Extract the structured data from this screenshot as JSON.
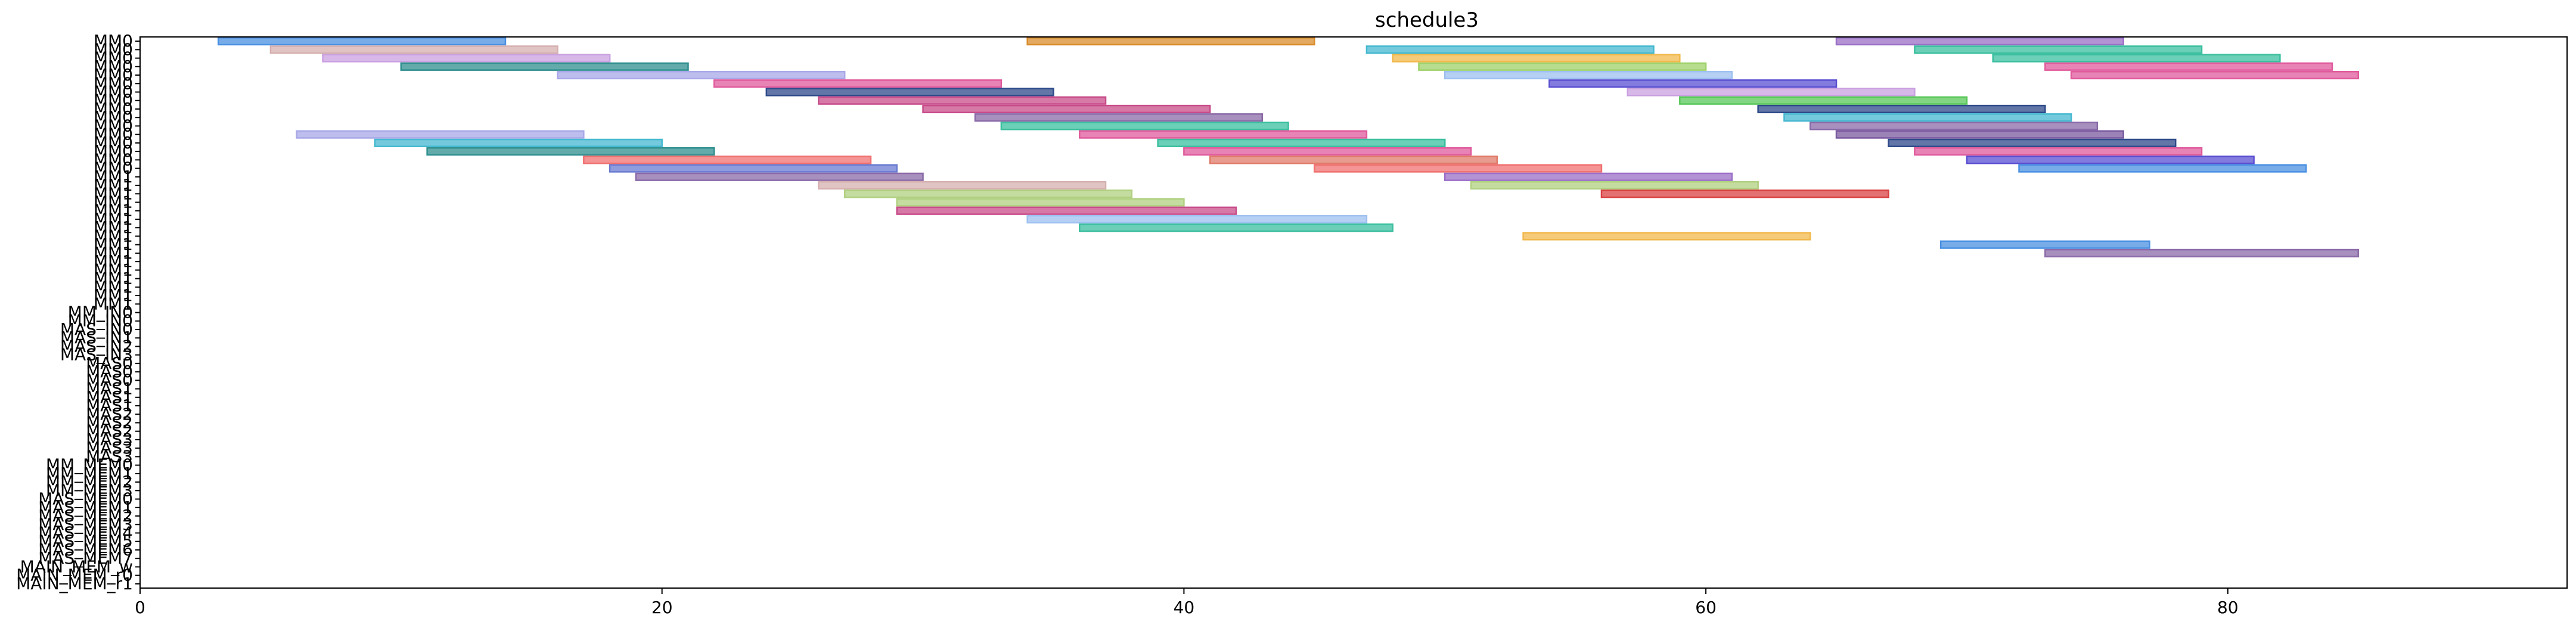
{
  "chart_data": {
    "type": "gantt",
    "title": "schedule3",
    "xlim": [
      0,
      93
    ],
    "x_ticks": [
      0,
      20,
      40,
      60,
      80
    ],
    "grid": false,
    "rows": [
      "MM0",
      "MM0",
      "MM0",
      "MM0",
      "MM0",
      "MM0",
      "MM0",
      "MM0",
      "MM0",
      "MM0",
      "MM0",
      "MM0",
      "MM0",
      "MM0",
      "MM0",
      "MM0",
      "MM1",
      "MM1",
      "MM1",
      "MM1",
      "MM1",
      "MM1",
      "MM1",
      "MM1",
      "MM1",
      "MM1",
      "MM1",
      "MM1",
      "MM1",
      "MM1",
      "MM1",
      "MM1",
      "MM_IN0",
      "MM_IN0",
      "MAS_IN0",
      "MAS_IN1",
      "MAS_IN2",
      "MAS_IN3",
      "MAS0",
      "MAS0",
      "MAS0",
      "MAS1",
      "MAS1",
      "MAS1",
      "MAS2",
      "MAS2",
      "MAS2",
      "MAS3",
      "MAS3",
      "MAS3",
      "MM_MEM0",
      "MM_MEM1",
      "MM_MEM2",
      "MM_MEM3",
      "MAS_MEM0",
      "MAS_MEM1",
      "MAS_MEM2",
      "MAS_MEM3",
      "MAS_MEM4",
      "MAS_MEM5",
      "MAS_MEM6",
      "MAS_MEM7",
      "MAIN_MEM_w",
      "MAIN_MEM_r0",
      "MAIN_MEM_r1"
    ],
    "y_tick_labels": [
      "MM0",
      "MM0",
      "MM0",
      "MM0",
      "MM0",
      "MM0",
      "MM0",
      "MM0",
      "MM0",
      "MM0",
      "MM0",
      "MM0",
      "MM0",
      "MM0",
      "MM0",
      "MM0",
      "MM1",
      "MM1",
      "MM1",
      "MM1",
      "MM1",
      "MM1",
      "MM1",
      "MM1",
      "MM1",
      "MM1",
      "MM1",
      "MM1",
      "MM1",
      "MM1",
      "MM1",
      "MM1",
      "MM_IN0",
      "MM_IN0",
      "MAS_IN0",
      "MAS_IN1",
      "MAS_IN2",
      "MAS_IN3",
      "MAS0",
      "MAS0",
      "MAS0",
      "MAS1",
      "MAS1",
      "MAS1",
      "MAS2",
      "MAS2",
      "MAS2",
      "MAS3",
      "MAS3",
      "MAS3",
      "MM_MEM0",
      "MM_MEM1",
      "MM_MEM2",
      "MM_MEM3",
      "MAS_MEM0",
      "MAS_MEM1",
      "MAS_MEM2",
      "MAS_MEM3",
      "MAS_MEM4",
      "MAS_MEM5",
      "MAS_MEM6",
      "MAS_MEM7",
      "MAIN_MEM_w",
      "MAIN_MEM_r0",
      "MAIN_MEM_r1"
    ],
    "palette": [
      "#4a90e2",
      "#d98c2b",
      "#9b6fc7",
      "#3bbf9f",
      "#e05a9c",
      "#7a5aa0",
      "#9fd26a",
      "#f2b84b",
      "#45b8d0",
      "#5a4fd1",
      "#c9a0e0",
      "#c84c8a",
      "#2f8f8f",
      "#8a6aa8",
      "#d94141",
      "#58c858",
      "#e07b6a",
      "#6a7bd1",
      "#a8a8e8",
      "#b0d080",
      "#f07070",
      "#9ec0f0",
      "#c8b080",
      "#2e4a8a",
      "#7fe07f",
      "#d6b0b0"
    ],
    "bars": [
      [
        0,
        3,
        14,
        0
      ],
      [
        0,
        34,
        45,
        1
      ],
      [
        0,
        65,
        76,
        2
      ],
      [
        1,
        5,
        16,
        25
      ],
      [
        1,
        47,
        58,
        8
      ],
      [
        1,
        68,
        79,
        3
      ],
      [
        2,
        7,
        18,
        10
      ],
      [
        2,
        48,
        59,
        7
      ],
      [
        2,
        71,
        82,
        3
      ],
      [
        3,
        10,
        21,
        12
      ],
      [
        3,
        49,
        60,
        6
      ],
      [
        3,
        73,
        84,
        4
      ],
      [
        4,
        16,
        27,
        18
      ],
      [
        4,
        50,
        61,
        21
      ],
      [
        4,
        74,
        85,
        4
      ],
      [
        5,
        22,
        33,
        4
      ],
      [
        5,
        54,
        65,
        9
      ],
      [
        6,
        24,
        35,
        23
      ],
      [
        6,
        57,
        68,
        10
      ],
      [
        7,
        26,
        37,
        11
      ],
      [
        7,
        59,
        70,
        15
      ],
      [
        8,
        30,
        41,
        11
      ],
      [
        8,
        62,
        73,
        23
      ],
      [
        9,
        32,
        43,
        13
      ],
      [
        9,
        63,
        74,
        8
      ],
      [
        10,
        33,
        44,
        3
      ],
      [
        10,
        64,
        75,
        13
      ],
      [
        11,
        6,
        17,
        18
      ],
      [
        11,
        36,
        47,
        4
      ],
      [
        11,
        65,
        76,
        5
      ],
      [
        12,
        9,
        20,
        8
      ],
      [
        12,
        39,
        50,
        3
      ],
      [
        12,
        67,
        78,
        23
      ],
      [
        13,
        11,
        22,
        12
      ],
      [
        13,
        40,
        51,
        4
      ],
      [
        13,
        68,
        79,
        4
      ],
      [
        14,
        17,
        28,
        20
      ],
      [
        14,
        41,
        52,
        16
      ],
      [
        14,
        70,
        81,
        9
      ],
      [
        15,
        18,
        29,
        17
      ],
      [
        15,
        45,
        56,
        20
      ],
      [
        15,
        72,
        83,
        0
      ],
      [
        16,
        19,
        30,
        13
      ],
      [
        16,
        50,
        61,
        2
      ],
      [
        17,
        26,
        37,
        25
      ],
      [
        17,
        51,
        62,
        19
      ],
      [
        18,
        27,
        38,
        19
      ],
      [
        18,
        56,
        67,
        14
      ],
      [
        19,
        29,
        40,
        19
      ],
      [
        20,
        29,
        42,
        11
      ],
      [
        21,
        34,
        47,
        21
      ],
      [
        22,
        36,
        48,
        3
      ],
      [
        23,
        53,
        64,
        7
      ],
      [
        24,
        69,
        77,
        26
      ],
      [
        25,
        73,
        85,
        13
      ]
    ]
  }
}
